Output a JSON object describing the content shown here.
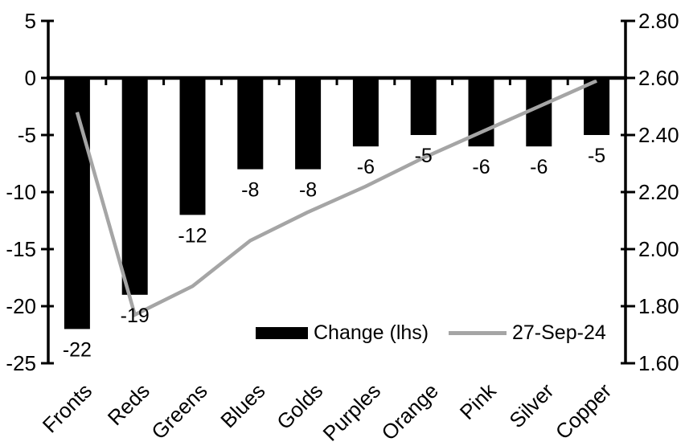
{
  "chart_data": {
    "type": "combo-bar-line",
    "title": "",
    "categories": [
      "Fronts",
      "Reds",
      "Greens",
      "Blues",
      "Golds",
      "Purples",
      "Orange",
      "Pink",
      "Silver",
      "Copper"
    ],
    "series": [
      {
        "name": "Change (lhs)",
        "type": "bar",
        "axis": "left",
        "color": "#000000",
        "values": [
          -22,
          -19,
          -12,
          -8,
          -8,
          -6,
          -5,
          -6,
          -6,
          -5
        ],
        "data_labels": [
          "-22",
          "-19",
          "-12",
          "-8",
          "-8",
          "-6",
          "-5",
          "-6",
          "-6",
          "-5"
        ]
      },
      {
        "name": "27-Sep-24",
        "type": "line",
        "axis": "right",
        "color": "#a5a5a5",
        "values": [
          2.48,
          1.77,
          1.87,
          2.03,
          2.13,
          2.22,
          2.32,
          2.41,
          2.5,
          2.59
        ]
      }
    ],
    "left_axis": {
      "min": -25,
      "max": 5,
      "step": 5,
      "tick_labels": [
        "5",
        "0",
        "-5",
        "-10",
        "-15",
        "-20",
        "-25"
      ]
    },
    "right_axis": {
      "min": 1.6,
      "max": 2.8,
      "step": 0.2,
      "tick_labels": [
        "2.80",
        "2.60",
        "2.40",
        "2.20",
        "2.00",
        "1.80",
        "1.60"
      ]
    },
    "legend": [
      {
        "label": "Change (lhs)",
        "swatch": "bar",
        "color": "#000000"
      },
      {
        "label": "27-Sep-24",
        "swatch": "line",
        "color": "#a5a5a5"
      }
    ],
    "legend_position": "inside-bottom",
    "grid": "off",
    "background": "#ffffff",
    "axis_color": "#000000"
  }
}
